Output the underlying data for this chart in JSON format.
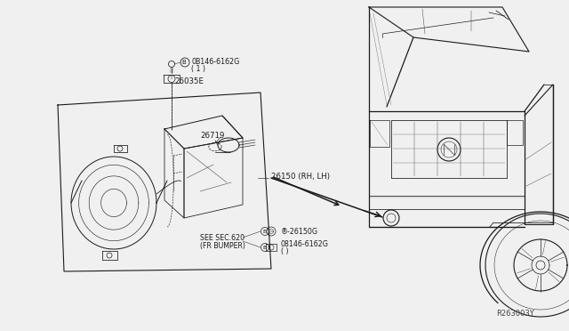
{
  "bg_color": "#f0f0f0",
  "line_color": "#1a1a1a",
  "ref_code": "R263003Y",
  "parts": {
    "bolt_top_label1": "0B146-6162G",
    "bolt_top_label2": "( 1 )",
    "part_26035E": "26035E",
    "part_26719": "26719",
    "part_26150": "26150 (RH, LH)",
    "part_26150G": "®-26150G",
    "bolt_bottom_label1": "®08146-6162G",
    "bolt_bottom_label2": "( )",
    "see_sec": "SEE SEC.620",
    "fr_bumper": "(FR BUMPER)"
  },
  "font_size_labels": 6.2,
  "font_size_ref": 6.0
}
